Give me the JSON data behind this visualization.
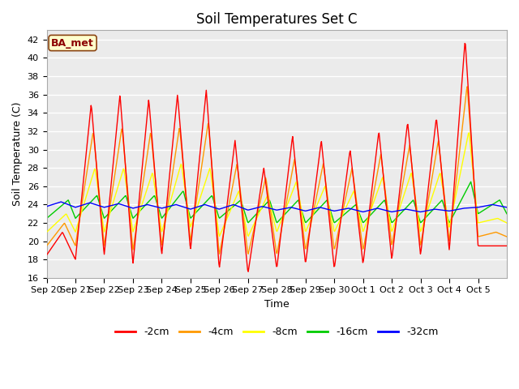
{
  "title": "Soil Temperatures Set C",
  "xlabel": "Time",
  "ylabel": "Soil Temperature (C)",
  "annotation": "BA_met",
  "ylim": [
    16,
    43
  ],
  "yticks": [
    16,
    18,
    20,
    22,
    24,
    26,
    28,
    30,
    32,
    34,
    36,
    38,
    40,
    42
  ],
  "line_colors": {
    "-2cm": "#ff0000",
    "-4cm": "#ff9900",
    "-8cm": "#ffff00",
    "-16cm": "#00cc00",
    "-32cm": "#0000ff"
  },
  "legend_labels": [
    "-2cm",
    "-4cm",
    "-8cm",
    "-16cm",
    "-32cm"
  ],
  "plot_bg_color": "#ebebeb",
  "title_fontsize": 12,
  "axis_fontsize": 9,
  "tick_fontsize": 8
}
